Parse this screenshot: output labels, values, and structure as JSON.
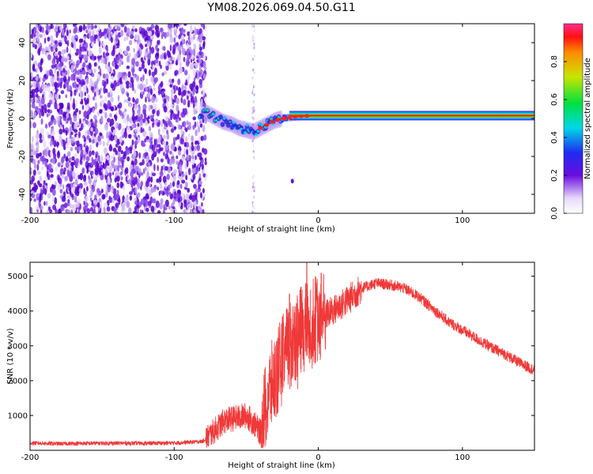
{
  "title": "YM08.2026.069.04.50.G11",
  "chart_data": [
    {
      "type": "heatmap",
      "xlabel": "Height of straight line (km)",
      "ylabel": "Frequency (Hz)",
      "xlim": [
        -200,
        150
      ],
      "ylim": [
        -50,
        50
      ],
      "xticks": [
        -200,
        -100,
        0,
        100
      ],
      "yticks": [
        40,
        20,
        0,
        -20,
        -40
      ],
      "noise_region_x": [
        -200,
        -78
      ],
      "spike_column_x": -45,
      "isolated_blob": {
        "x": -18,
        "y": -33
      },
      "ridge_points": [
        {
          "x": -80,
          "y": 4
        },
        {
          "x": -75,
          "y": 2
        },
        {
          "x": -70,
          "y": 0
        },
        {
          "x": -65,
          "y": -2
        },
        {
          "x": -60,
          "y": -3
        },
        {
          "x": -55,
          "y": -5
        },
        {
          "x": -50,
          "y": -6
        },
        {
          "x": -45,
          "y": -7
        },
        {
          "x": -40,
          "y": -5
        },
        {
          "x": -35,
          "y": -3
        },
        {
          "x": -30,
          "y": -1
        },
        {
          "x": -25,
          "y": 0
        },
        {
          "x": -15,
          "y": 1
        },
        {
          "x": -5,
          "y": 1.5
        },
        {
          "x": 5,
          "y": 1.5
        },
        {
          "x": 20,
          "y": 1.5
        },
        {
          "x": 50,
          "y": 1.5
        },
        {
          "x": 100,
          "y": 1.5
        },
        {
          "x": 150,
          "y": 1.5
        }
      ],
      "colorbar": {
        "label": "Normalized spectral amplitude",
        "range": [
          0,
          1
        ],
        "ticks": [
          "0.0",
          "0.2",
          "0.4",
          "0.6",
          "0.8"
        ]
      }
    },
    {
      "type": "line",
      "xlabel": "Height of straight line (km)",
      "ylabel": "SNR (10 * v/v)",
      "xlim": [
        -200,
        150
      ],
      "ylim": [
        0,
        5400
      ],
      "xticks": [
        -200,
        -100,
        0,
        100
      ],
      "yticks": [
        1000,
        2000,
        3000,
        4000,
        5000
      ],
      "line_color": "#f03838",
      "series": [
        {
          "name": "SNR",
          "x": [
            -200,
            -180,
            -160,
            -140,
            -120,
            -100,
            -90,
            -80,
            -75,
            -70,
            -65,
            -60,
            -55,
            -50,
            -45,
            -40,
            -35,
            -30,
            -25,
            -20,
            -15,
            -10,
            -5,
            0,
            10,
            20,
            30,
            40,
            50,
            60,
            70,
            80,
            90,
            100,
            110,
            120,
            130,
            140,
            150
          ],
          "values": [
            210,
            190,
            200,
            205,
            200,
            210,
            230,
            260,
            450,
            650,
            850,
            900,
            950,
            1000,
            800,
            500,
            1600,
            2100,
            2600,
            3000,
            3300,
            3500,
            3700,
            3800,
            4000,
            4300,
            4650,
            4800,
            4750,
            4650,
            4400,
            4050,
            3700,
            3450,
            3200,
            2950,
            2750,
            2500,
            2300
          ]
        }
      ],
      "spikes": [
        {
          "x": -20,
          "y": 4500
        },
        {
          "x": -8,
          "y": 5400
        },
        {
          "x": 2,
          "y": 5100
        },
        {
          "x": -12,
          "y": 4700
        }
      ]
    }
  ]
}
